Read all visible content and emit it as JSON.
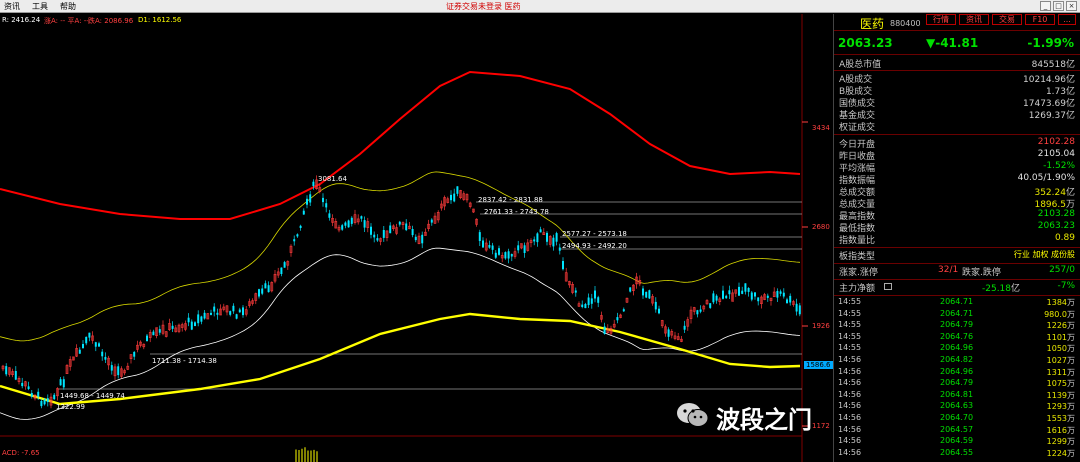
{
  "menu": {
    "items": [
      "资讯",
      "工具",
      "帮助"
    ]
  },
  "window": {
    "title": "证券交易未登录 医药"
  },
  "window_buttons": [
    "_",
    "□",
    "×"
  ],
  "chart": {
    "legend": {
      "line1": "R: 2416.24",
      "line2": "涨A: -- 平A: --",
      "line3": "跌A: 2086.96",
      "line4": "D1: 1612.56"
    },
    "price_axis": [
      "3434",
      "2680",
      "1926",
      "1586.6",
      "1172"
    ],
    "annotations": [
      "3081.64",
      "2837.42 - 2831.88",
      "2761.33 - 2743.78",
      "2577.27 - 2573.18",
      "2494.93 - 2492.20",
      "1711.38 - 1714.38",
      "1449.68 - 1449.74",
      "1322.99"
    ],
    "macd_label": "ACD: -7.65",
    "watermark": "波段之门",
    "colors": {
      "candle_up": "#ff3b3b",
      "candle_down": "#00e5ff",
      "outer_band": "#ff0000",
      "inner_band": "#d8d800",
      "mid_band": "#ffffff",
      "long_ma": "#ffff00"
    }
  },
  "panel": {
    "tabs": [
      "行情",
      "资讯",
      "交易",
      "F10",
      "..."
    ],
    "name": "医药",
    "code": "880400",
    "price": "2063.23",
    "change": "▼-41.81",
    "change_pct": "-1.99%",
    "market": [
      {
        "label": "A股总市值",
        "value": "845518",
        "unit": "亿"
      },
      {
        "label": "A股成交",
        "value": "10214.96",
        "unit": "亿"
      },
      {
        "label": "B股成交",
        "value": "1.73",
        "unit": "亿"
      },
      {
        "label": "国债成交",
        "value": "17473.69",
        "unit": "亿"
      },
      {
        "label": "基金成交",
        "value": "1269.37",
        "unit": "亿"
      },
      {
        "label": "权证成交",
        "value": "",
        "unit": ""
      }
    ],
    "stats": [
      {
        "label": "今日开盘",
        "value": "2102.28",
        "color": "#ff4040"
      },
      {
        "label": "昨日收盘",
        "value": "2105.04",
        "color": "#e0e0e0"
      },
      {
        "label": "平均涨幅",
        "value": "-1.52%",
        "color": "#00e000"
      },
      {
        "label": "指数振幅",
        "value": "40.05/1.90%",
        "color": "#e0e0e0"
      },
      {
        "label": "总成交额",
        "value": "352.24",
        "unit": "亿",
        "color": "#e8e800"
      },
      {
        "label": "总成交量",
        "value": "1896.5",
        "unit": "万",
        "color": "#e8e800"
      },
      {
        "label": "最高指数",
        "value": "2103.28",
        "color": "#00e000"
      },
      {
        "label": "最低指数",
        "value": "2063.23",
        "color": "#00e000"
      },
      {
        "label": "指数量比",
        "value": "0.89",
        "color": "#e8e800"
      }
    ],
    "type_row": {
      "label": "板指类型",
      "value": "行业 加权 成份股",
      "value_tag": "行业 加权 成份股"
    },
    "updown_row": {
      "up_label": "涨家.涨停",
      "up_value": "32/1",
      "down_label": "跌家.跌停",
      "down_value": "257/0"
    },
    "flow_row": {
      "label": "主力净额",
      "value": "-25.18",
      "unit": "亿",
      "pct": "-7%"
    },
    "ticks": [
      {
        "time": "14:55",
        "price": "2064.71",
        "vol": "1384",
        "unit": "万"
      },
      {
        "time": "14:55",
        "price": "2064.71",
        "vol": "980.0",
        "unit": "万"
      },
      {
        "time": "14:55",
        "price": "2064.79",
        "vol": "1226",
        "unit": "万"
      },
      {
        "time": "14:55",
        "price": "2064.76",
        "vol": "1101",
        "unit": "万"
      },
      {
        "time": "14:55",
        "price": "2064.96",
        "vol": "1050",
        "unit": "万"
      },
      {
        "time": "14:56",
        "price": "2064.82",
        "vol": "1027",
        "unit": "万"
      },
      {
        "time": "14:56",
        "price": "2064.96",
        "vol": "1311",
        "unit": "万"
      },
      {
        "time": "14:56",
        "price": "2064.79",
        "vol": "1075",
        "unit": "万"
      },
      {
        "time": "14:56",
        "price": "2064.81",
        "vol": "1139",
        "unit": "万"
      },
      {
        "time": "14:56",
        "price": "2064.63",
        "vol": "1293",
        "unit": "万"
      },
      {
        "time": "14:56",
        "price": "2064.70",
        "vol": "1553",
        "unit": "万"
      },
      {
        "time": "14:56",
        "price": "2064.57",
        "vol": "1616",
        "unit": "万"
      },
      {
        "time": "14:56",
        "price": "2064.59",
        "vol": "1299",
        "unit": "万"
      },
      {
        "time": "14:56",
        "price": "2064.55",
        "vol": "1224",
        "unit": "万"
      }
    ]
  }
}
